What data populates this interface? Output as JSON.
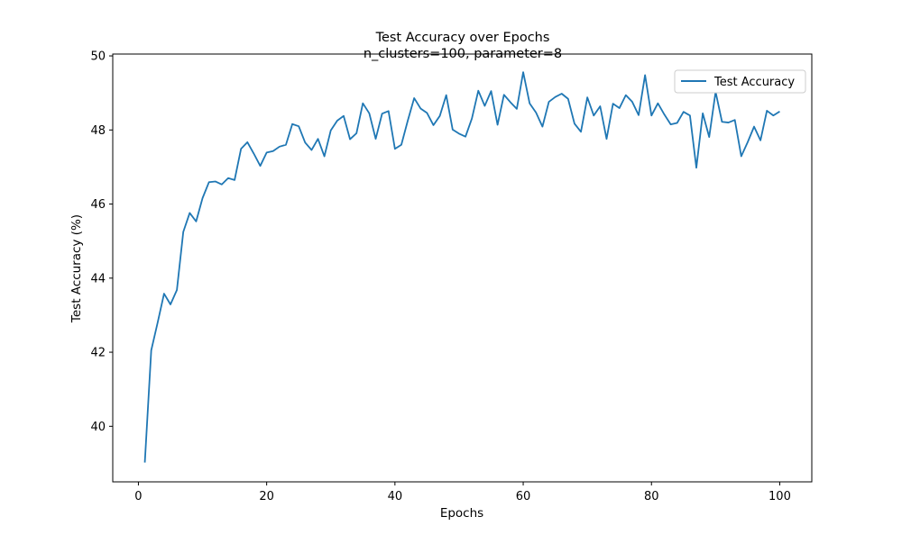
{
  "chart_data": {
    "type": "line",
    "title": "Test Accuracy over Epochs",
    "subtitle": "n_clusters=100, parameter=8",
    "xlabel": "Epochs",
    "ylabel": "Test Accuracy (%)",
    "xlim": [
      -4,
      105
    ],
    "ylim": [
      38.5,
      50.05
    ],
    "xticks": [
      0,
      20,
      40,
      60,
      80,
      100
    ],
    "yticks": [
      40,
      42,
      44,
      46,
      48,
      50
    ],
    "grid": false,
    "legend_position": "top-right",
    "series": [
      {
        "name": "Test Accuracy",
        "color": "#1f77b4",
        "x": [
          1,
          2,
          3,
          4,
          5,
          6,
          7,
          8,
          9,
          10,
          11,
          12,
          13,
          14,
          15,
          16,
          17,
          18,
          19,
          20,
          21,
          22,
          23,
          24,
          25,
          26,
          27,
          28,
          29,
          30,
          31,
          32,
          33,
          34,
          35,
          36,
          37,
          38,
          39,
          40,
          41,
          42,
          43,
          44,
          45,
          46,
          47,
          48,
          49,
          50,
          51,
          52,
          53,
          54,
          55,
          56,
          57,
          58,
          59,
          60,
          61,
          62,
          63,
          64,
          65,
          66,
          67,
          68,
          69,
          70,
          71,
          72,
          73,
          74,
          75,
          76,
          77,
          78,
          79,
          80,
          81,
          82,
          83,
          84,
          85,
          86,
          87,
          88,
          89,
          90,
          91,
          92,
          93,
          94,
          95,
          96,
          97,
          98,
          99,
          100
        ],
        "values": [
          39.02,
          42.05,
          42.8,
          43.58,
          43.29,
          43.68,
          45.25,
          45.76,
          45.53,
          46.16,
          46.59,
          46.61,
          46.53,
          46.7,
          46.65,
          47.49,
          47.67,
          47.36,
          47.03,
          47.39,
          47.43,
          47.55,
          47.6,
          48.16,
          48.1,
          47.66,
          47.46,
          47.76,
          47.29,
          47.99,
          48.25,
          48.38,
          47.75,
          47.91,
          48.72,
          48.45,
          47.76,
          48.44,
          48.51,
          47.49,
          47.6,
          48.25,
          48.86,
          48.58,
          48.46,
          48.13,
          48.38,
          48.94,
          48.01,
          47.9,
          47.82,
          48.31,
          49.06,
          48.65,
          49.05,
          48.14,
          48.95,
          48.75,
          48.57,
          49.56,
          48.72,
          48.47,
          48.09,
          48.76,
          48.89,
          48.98,
          48.84,
          48.17,
          47.95,
          48.88,
          48.39,
          48.64,
          47.76,
          48.71,
          48.59,
          48.94,
          48.76,
          48.4,
          49.48,
          48.39,
          48.72,
          48.42,
          48.15,
          48.19,
          48.49,
          48.39,
          46.98,
          48.45,
          47.81,
          49.03,
          48.22,
          48.2,
          48.27,
          47.29,
          47.67,
          48.09,
          47.72,
          48.52,
          48.39,
          48.5
        ]
      }
    ]
  }
}
